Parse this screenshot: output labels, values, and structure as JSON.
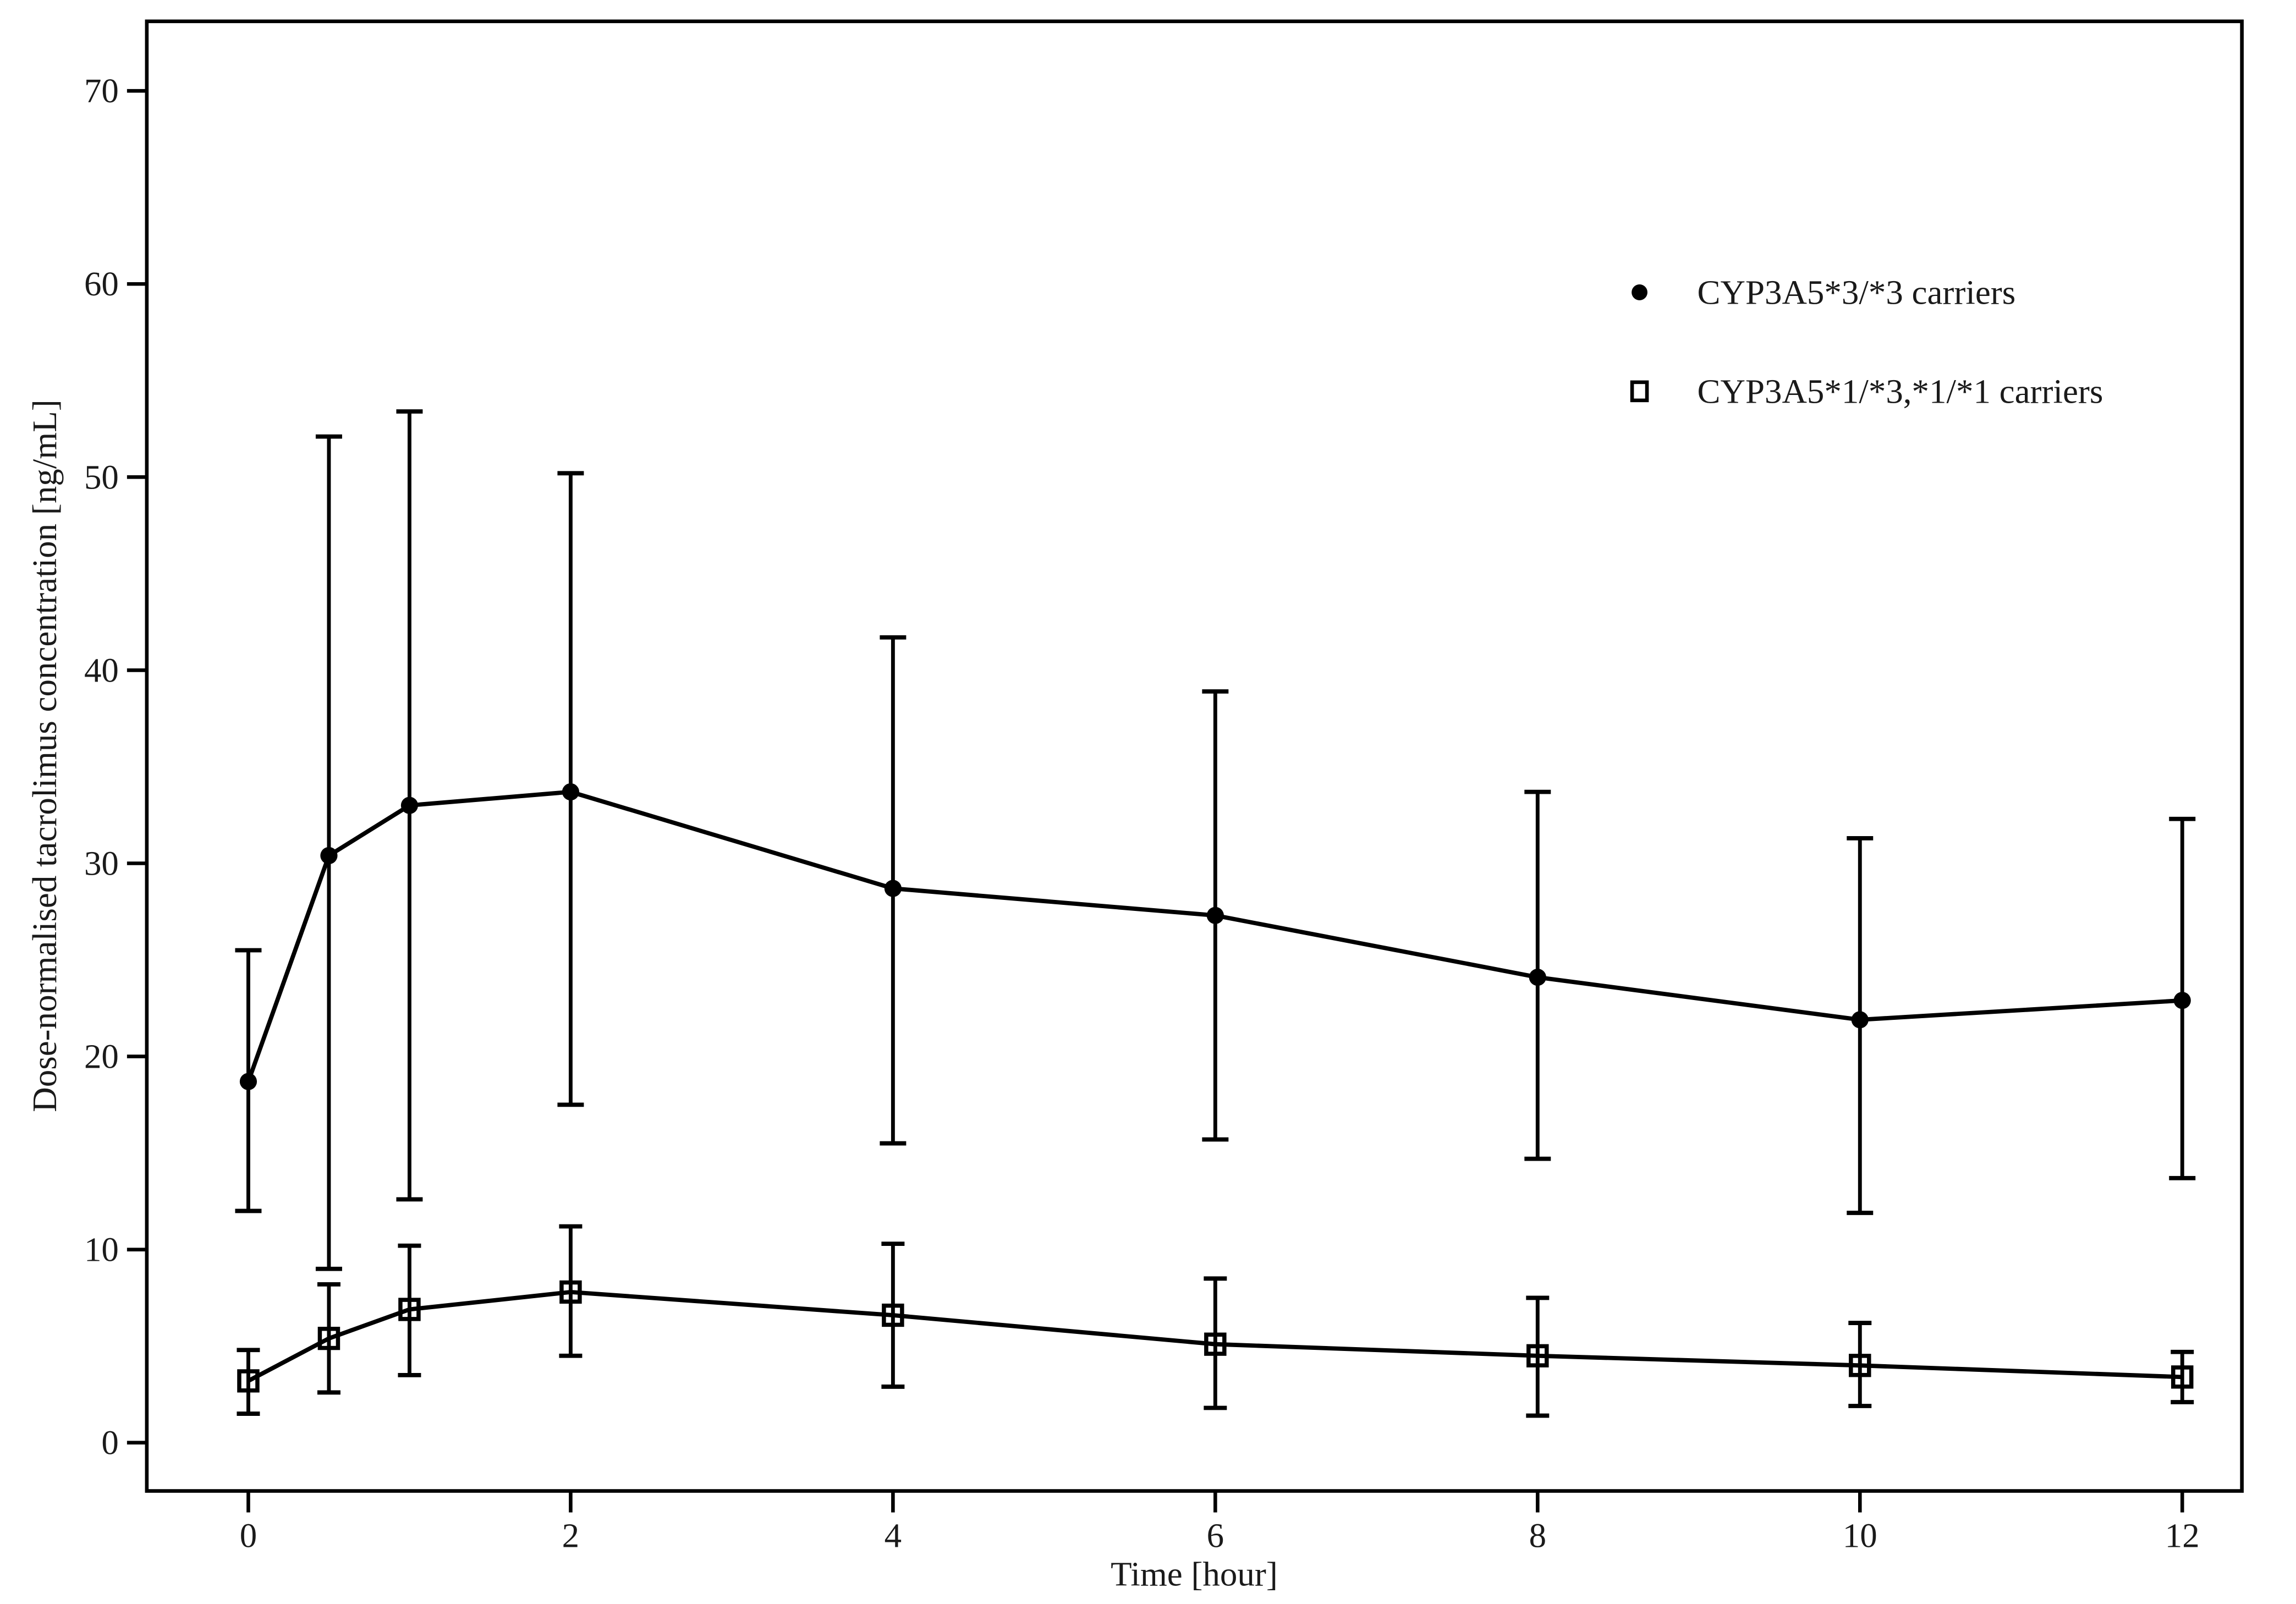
{
  "figure": {
    "background_color": "#ffffff",
    "ink_color": "#000000",
    "label_color": "#1a1a1a",
    "title": ""
  },
  "chart_data": {
    "type": "line",
    "title": "",
    "xlabel": "Time [hour]",
    "ylabel": "Dose-normalised tacrolimus concentration [ng/mL]",
    "xlim": [
      -0.63,
      12.37
    ],
    "ylim": [
      -2.5,
      73.6
    ],
    "x_ticks": [
      0,
      2,
      4,
      6,
      8,
      10,
      12
    ],
    "y_ticks": [
      0,
      10,
      20,
      30,
      40,
      50,
      60,
      70
    ],
    "grid": false,
    "frame": "full-box",
    "error_bars": true,
    "legend_position": "inside-upper-right",
    "series": [
      {
        "name": "CYP3A5*3/*3 carriers",
        "marker": "filled-circle",
        "color": "#000000",
        "x": [
          0,
          0.5,
          1,
          2,
          4,
          6,
          8,
          10,
          12
        ],
        "y": [
          18.7,
          30.4,
          33.0,
          33.7,
          28.7,
          27.3,
          24.1,
          21.9,
          22.9
        ],
        "y_lower": [
          12.0,
          9.0,
          12.6,
          17.5,
          15.5,
          15.7,
          14.7,
          11.9,
          13.7
        ],
        "y_upper": [
          25.5,
          52.1,
          53.4,
          50.2,
          41.7,
          38.9,
          33.7,
          31.3,
          32.3
        ]
      },
      {
        "name": "CYP3A5*1/*3,*1/*1 carriers",
        "marker": "open-square",
        "color": "#000000",
        "x": [
          0,
          0.5,
          1,
          2,
          4,
          6,
          8,
          10,
          12
        ],
        "y": [
          3.2,
          5.4,
          6.9,
          7.8,
          6.6,
          5.1,
          4.5,
          4.0,
          3.4
        ],
        "y_lower": [
          1.5,
          2.6,
          3.5,
          4.5,
          2.9,
          1.8,
          1.4,
          1.9,
          2.1
        ],
        "y_upper": [
          4.8,
          8.2,
          10.2,
          11.2,
          10.3,
          8.5,
          7.5,
          6.2,
          4.7
        ]
      }
    ]
  }
}
